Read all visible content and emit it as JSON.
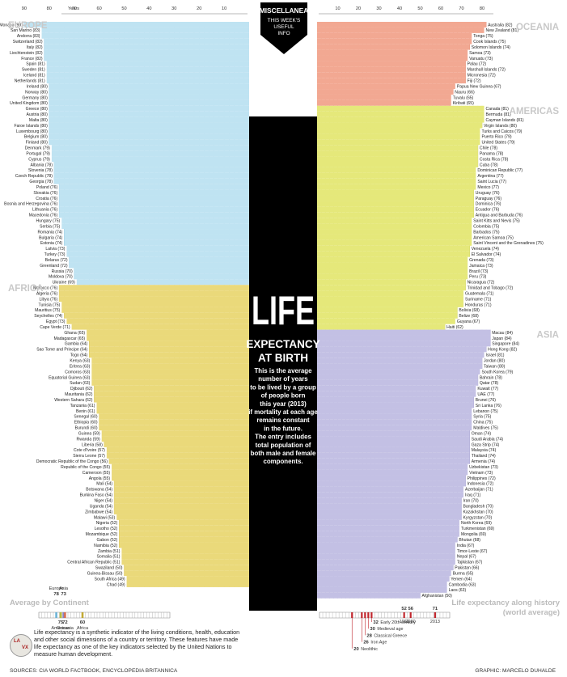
{
  "colors": {
    "europe": "#bfe3f2",
    "oceania": "#f2a892",
    "americas": "#e5e87a",
    "africa": "#ead97a",
    "asia": "#c3c0e4",
    "europe_line": "#6db3d6",
    "oceania_line": "#d87055",
    "americas_line": "#b9bd3a",
    "africa_line": "#c2a934",
    "asia_line": "#8883c0",
    "spine": "#000000",
    "region_label": "#c9c9c9"
  },
  "banner": {
    "title": "MISCELLANEA",
    "line1": "THIS WEEK'S",
    "line2": "USEFUL",
    "line3": "INFO"
  },
  "title": {
    "line1": "LIFE",
    "line2": "EXPECTANCY",
    "line3": "AT BIRTH"
  },
  "description": [
    "This is the average",
    "number of years",
    "to be lived by a group",
    "of people born",
    "this year (2013)",
    "if mortality at each age",
    "remains constant",
    "in the future.",
    "The entry includes",
    "total population of",
    "both male and female",
    "components."
  ],
  "footnote": "Life expectancy is a synthetic indicator of the living conditions, health, education and other social dimensions of a country or territory. These features have made life expectancy as one of the key indicators selected by the United Nations to measure human development.",
  "sources": "SOURCES: CIA WORLD FACTBOOK, ENCYCLOPEDIA BRITANNICA",
  "graphic": "GRAPHIC: MARCELO DUHALDE",
  "chart_data": {
    "type": "bar",
    "left_axis": {
      "label": "Years",
      "ticks": [
        90,
        80,
        70,
        60,
        50,
        40,
        30,
        20,
        10
      ]
    },
    "right_axis": {
      "ticks": [
        10,
        20,
        30,
        40,
        50,
        60,
        70,
        80
      ]
    },
    "regions": [
      {
        "name": "EUROPE",
        "side": "left",
        "countries": [
          [
            "Monaco",
            90
          ],
          [
            "San Marino",
            83
          ],
          [
            "Andorra",
            83
          ],
          [
            "Switzerland",
            82
          ],
          [
            "Italy",
            82
          ],
          [
            "Liechtenstein",
            82
          ],
          [
            "France",
            82
          ],
          [
            "Spain",
            81
          ],
          [
            "Sweden",
            81
          ],
          [
            "Iceland",
            81
          ],
          [
            "Netherlands",
            81
          ],
          [
            "Ireland",
            80
          ],
          [
            "Norway",
            80
          ],
          [
            "Germany",
            80
          ],
          [
            "United Kingdom",
            80
          ],
          [
            "Greece",
            80
          ],
          [
            "Austria",
            80
          ],
          [
            "Malta",
            80
          ],
          [
            "Faroe Islands",
            80
          ],
          [
            "Luxembourg",
            80
          ],
          [
            "Belgium",
            80
          ],
          [
            "Finland",
            80
          ],
          [
            "Denmark",
            79
          ],
          [
            "Portugal",
            79
          ],
          [
            "Cyprus",
            79
          ],
          [
            "Albania",
            78
          ],
          [
            "Slovenia",
            78
          ],
          [
            "Czech Republic",
            78
          ],
          [
            "Georgia",
            78
          ],
          [
            "Poland",
            76
          ],
          [
            "Slovakia",
            76
          ],
          [
            "Croatia",
            76
          ],
          [
            "Bosnia and Herzegovina",
            76
          ],
          [
            "Lithuania",
            76
          ],
          [
            "Macedonia",
            76
          ],
          [
            "Hungary",
            75
          ],
          [
            "Serbia",
            75
          ],
          [
            "Romania",
            74
          ],
          [
            "Bulgaria",
            74
          ],
          [
            "Estonia",
            74
          ],
          [
            "Latvia",
            73
          ],
          [
            "Turkey",
            73
          ],
          [
            "Belarus",
            72
          ],
          [
            "Greenland",
            72
          ],
          [
            "Russia",
            70
          ],
          [
            "Moldova",
            70
          ],
          [
            "Ukraine",
            69
          ]
        ]
      },
      {
        "name": "AFRICA",
        "side": "left",
        "countries": [
          [
            "Morocco",
            76
          ],
          [
            "Algeria",
            76
          ],
          [
            "Libya",
            76
          ],
          [
            "Tunisia",
            75
          ],
          [
            "Mauritius",
            75
          ],
          [
            "Seychelles",
            74
          ],
          [
            "Egypt",
            73
          ],
          [
            "Cape Verde",
            71
          ],
          [
            "Ghana",
            65
          ],
          [
            "Madagascar",
            65
          ],
          [
            "Gambia",
            64
          ],
          [
            "Sao Tome and Principe",
            64
          ],
          [
            "Togo",
            64
          ],
          [
            "Kenya",
            63
          ],
          [
            "Eritrea",
            63
          ],
          [
            "Comoros",
            63
          ],
          [
            "Equatorial Guinea",
            63
          ],
          [
            "Sudan",
            63
          ],
          [
            "Djibouti",
            62
          ],
          [
            "Mauritania",
            62
          ],
          [
            "Western Sahara",
            62
          ],
          [
            "Tanzania",
            61
          ],
          [
            "Benin",
            61
          ],
          [
            "Senegal",
            60
          ],
          [
            "Ethiopia",
            60
          ],
          [
            "Burundi",
            60
          ],
          [
            "Guinea",
            59
          ],
          [
            "Rwanda",
            59
          ],
          [
            "Liberia",
            58
          ],
          [
            "Cote d'Ivoire",
            57
          ],
          [
            "Sierra Leone",
            57
          ],
          [
            "Democratic Republic of the Congo",
            56
          ],
          [
            "Republic of the Congo",
            55
          ],
          [
            "Cameroon",
            55
          ],
          [
            "Angola",
            55
          ],
          [
            "Mali",
            54
          ],
          [
            "Botswana",
            54
          ],
          [
            "Burkina Faso",
            54
          ],
          [
            "Niger",
            54
          ],
          [
            "Uganda",
            54
          ],
          [
            "Zimbabwe",
            54
          ],
          [
            "Malawi",
            53
          ],
          [
            "Nigeria",
            52
          ],
          [
            "Lesotho",
            52
          ],
          [
            "Mozambique",
            52
          ],
          [
            "Gabon",
            52
          ],
          [
            "Namibia",
            52
          ],
          [
            "Zambia",
            51
          ],
          [
            "Somalia",
            51
          ],
          [
            "Central African Republic",
            51
          ],
          [
            "Swaziland",
            50
          ],
          [
            "Guinea-Bissau",
            50
          ],
          [
            "South Africa",
            49
          ],
          [
            "Chad",
            49
          ]
        ]
      },
      {
        "name": "OCEANIA",
        "side": "right",
        "countries": [
          [
            "Australia",
            82
          ],
          [
            "New Zealand",
            81
          ],
          [
            "Tonga",
            75
          ],
          [
            "Cook Islands",
            75
          ],
          [
            "Solomon Islands",
            74
          ],
          [
            "Samoa",
            73
          ],
          [
            "Vanuatu",
            73
          ],
          [
            "Palau",
            72
          ],
          [
            "Marshall Islands",
            72
          ],
          [
            "Micronesia",
            72
          ],
          [
            "Fiji",
            72
          ],
          [
            "Papua New Guinea",
            67
          ],
          [
            "Nauru",
            66
          ],
          [
            "Tuvalu",
            65
          ],
          [
            "Kiribati",
            65
          ]
        ]
      },
      {
        "name": "AMERICAS",
        "side": "right",
        "countries": [
          [
            "Canada",
            81
          ],
          [
            "Bermuda",
            81
          ],
          [
            "Cayman Islands",
            81
          ],
          [
            "Virgin Islands",
            80
          ],
          [
            "Turks and Caicos",
            79
          ],
          [
            "Puerto Rico",
            79
          ],
          [
            "United States",
            79
          ],
          [
            "Chile",
            78
          ],
          [
            "Panama",
            78
          ],
          [
            "Costa Rica",
            78
          ],
          [
            "Cuba",
            78
          ],
          [
            "Dominican Republic",
            77
          ],
          [
            "Argentina",
            77
          ],
          [
            "Saint Lucia",
            77
          ],
          [
            "Mexico",
            77
          ],
          [
            "Uruguay",
            76
          ],
          [
            "Paraguay",
            76
          ],
          [
            "Dominica",
            76
          ],
          [
            "Ecuador",
            76
          ],
          [
            "Antigua and Barbuda",
            76
          ],
          [
            "Saint Kitts and Nevis",
            75
          ],
          [
            "Colombia",
            75
          ],
          [
            "Barbados",
            75
          ],
          [
            "American Samoa",
            75
          ],
          [
            "Saint Vincent and the Grenadines",
            75
          ],
          [
            "Venezuela",
            74
          ],
          [
            "El Salvador",
            74
          ],
          [
            "Grenada",
            73
          ],
          [
            "Jamaica",
            73
          ],
          [
            "Brazil",
            73
          ],
          [
            "Peru",
            73
          ],
          [
            "Nicaragua",
            72
          ],
          [
            "Trinidad and Tobago",
            72
          ],
          [
            "Guatemala",
            71
          ],
          [
            "Suriname",
            71
          ],
          [
            "Honduras",
            71
          ],
          [
            "Bolivia",
            68
          ],
          [
            "Belize",
            68
          ],
          [
            "Guyana",
            67
          ],
          [
            "Haiti",
            62
          ]
        ]
      },
      {
        "name": "ASIA",
        "side": "right",
        "countries": [
          [
            "Macau",
            84
          ],
          [
            "Japan",
            84
          ],
          [
            "Singapore",
            84
          ],
          [
            "Hong Kong",
            82
          ],
          [
            "Israel",
            81
          ],
          [
            "Jordan",
            80
          ],
          [
            "Taiwan",
            80
          ],
          [
            "South Korea",
            79
          ],
          [
            "Bahrain",
            78
          ],
          [
            "Qatar",
            78
          ],
          [
            "Kuwait",
            77
          ],
          [
            "UAE",
            77
          ],
          [
            "Brunei",
            76
          ],
          [
            "Sri Lanka",
            76
          ],
          [
            "Lebanon",
            75
          ],
          [
            "Syria",
            75
          ],
          [
            "China",
            75
          ],
          [
            "Maldives",
            75
          ],
          [
            "Oman",
            74
          ],
          [
            "Saudi Arabia",
            74
          ],
          [
            "Gaza Strip",
            74
          ],
          [
            "Malaysia",
            74
          ],
          [
            "Thailand",
            74
          ],
          [
            "Armenia",
            74
          ],
          [
            "Uzbekistan",
            73
          ],
          [
            "Vietnam",
            73
          ],
          [
            "Philippines",
            72
          ],
          [
            "Indonesia",
            72
          ],
          [
            "Azerbaijan",
            71
          ],
          [
            "Iraq",
            71
          ],
          [
            "Iran",
            70
          ],
          [
            "Bangladesh",
            70
          ],
          [
            "Kazakhstan",
            70
          ],
          [
            "Kyrgyzstan",
            70
          ],
          [
            "North Korea",
            69
          ],
          [
            "Turkmenistan",
            69
          ],
          [
            "Mongolia",
            69
          ],
          [
            "Bhutan",
            68
          ],
          [
            "India",
            67
          ],
          [
            "Timor-Leste",
            67
          ],
          [
            "Nepal",
            67
          ],
          [
            "Tajikistan",
            67
          ],
          [
            "Pakistan",
            66
          ],
          [
            "Burma",
            65
          ],
          [
            "Yemen",
            64
          ],
          [
            "Cambodia",
            63
          ],
          [
            "Laos",
            63
          ],
          [
            "Afghanistan",
            50
          ]
        ]
      }
    ],
    "average_by_continent": {
      "title": "Average by Continent",
      "values": [
        [
          "Europe",
          78
        ],
        [
          "Asia",
          73
        ],
        [
          "Americas",
          75
        ],
        [
          "Oceania",
          72
        ],
        [
          "Africa",
          60
        ]
      ]
    },
    "history": {
      "title_line1": "Life expectancy along history",
      "title_line2": "(world average)",
      "points": [
        [
          "2013",
          71
        ],
        [
          "1980",
          56
        ],
        [
          "1960",
          52
        ],
        [
          "Early 20th century",
          32
        ],
        [
          "Medieval age",
          30
        ],
        [
          "Classical Greece",
          28
        ],
        [
          "Iron Age",
          26
        ],
        [
          "Neolithic",
          20
        ]
      ]
    }
  }
}
